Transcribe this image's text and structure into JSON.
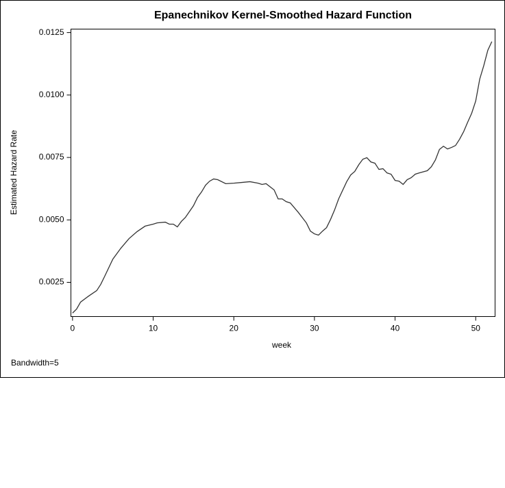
{
  "chart_data": {
    "type": "line",
    "title": "Epanechnikov Kernel-Smoothed Hazard Function",
    "x_label": "week",
    "y_label": "Estimated Hazard Rate",
    "note": "Bandwidth=5",
    "xlim": [
      -0.2,
      52.4
    ],
    "ylim": [
      0.00113,
      0.01264
    ],
    "xticks": [
      0,
      10,
      20,
      30,
      40,
      50
    ],
    "yticks": [
      0.0025,
      {
        "value": 0.005,
        "label": "0.0050"
      },
      0.0075,
      {
        "value": 0.01,
        "label": "0.0100"
      },
      0.0125
    ],
    "x": [
      0,
      0.5,
      1,
      2,
      3,
      3.5,
      4,
      5,
      6,
      7,
      8,
      9,
      10,
      10.5,
      11.5,
      12,
      12.5,
      13,
      13.5,
      14,
      15,
      15.5,
      16,
      16.5,
      17,
      17.5,
      18,
      19,
      20,
      21,
      22,
      23,
      23.5,
      24,
      25,
      25.5,
      26,
      26.5,
      27,
      28,
      29,
      29.5,
      30,
      30.5,
      31,
      31.5,
      32,
      32.5,
      33,
      34,
      34.5,
      35,
      35.5,
      36,
      36.5,
      37,
      37.5,
      38,
      38.5,
      39,
      39.5,
      40,
      40.5,
      41,
      41.5,
      42,
      42.5,
      43,
      44,
      44.5,
      45,
      45.5,
      46,
      46.5,
      47,
      47.5,
      48,
      48.5,
      49,
      49.5,
      50,
      50.5,
      51,
      51.5,
      52
    ],
    "series": [
      {
        "color": "#333333",
        "values": [
          0.00127,
          0.00143,
          0.00171,
          0.00195,
          0.00217,
          0.00242,
          0.00275,
          0.00343,
          0.00387,
          0.00425,
          0.00453,
          0.00475,
          0.00483,
          0.00488,
          0.00491,
          0.00483,
          0.00483,
          0.00472,
          0.00494,
          0.0051,
          0.00557,
          0.0059,
          0.00612,
          0.00639,
          0.00655,
          0.00664,
          0.00661,
          0.00645,
          0.00647,
          0.0065,
          0.00653,
          0.00647,
          0.00642,
          0.00645,
          0.0062,
          0.00584,
          0.00584,
          0.00573,
          0.00568,
          0.0053,
          0.00488,
          0.00455,
          0.00444,
          0.00439,
          0.00455,
          0.00469,
          0.00502,
          0.0054,
          0.00584,
          0.00653,
          0.0068,
          0.00694,
          0.00721,
          0.00743,
          0.00749,
          0.00732,
          0.00727,
          0.00702,
          0.00705,
          0.00688,
          0.00683,
          0.00658,
          0.00655,
          0.00642,
          0.00661,
          0.00669,
          0.00683,
          0.00688,
          0.00697,
          0.00713,
          0.0074,
          0.00782,
          0.00795,
          0.00784,
          0.0079,
          0.00798,
          0.00823,
          0.00853,
          0.00891,
          0.00927,
          0.00976,
          0.01064,
          0.01118,
          0.01179,
          0.01214
        ]
      }
    ]
  }
}
